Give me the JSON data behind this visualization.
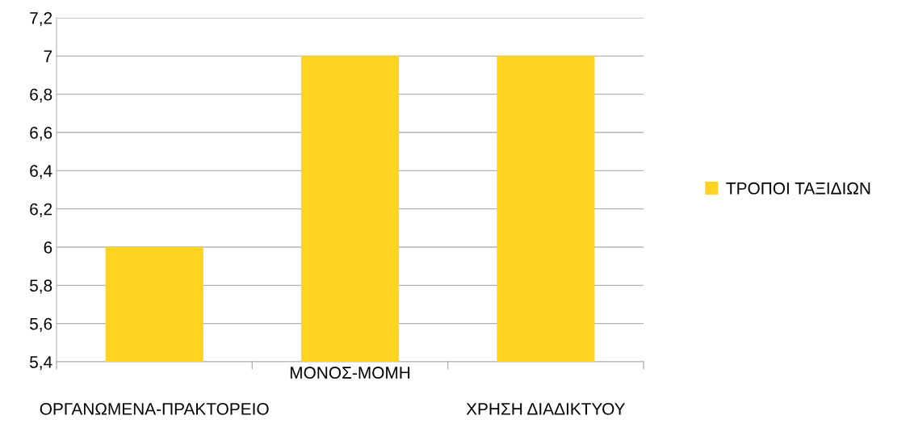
{
  "chart_data": {
    "type": "bar",
    "categories": [
      "ΟΡΓΑΝΩΜΕΝΑ-ΠΡΑΚΤΟΡΕΙΟ",
      "ΜΟΝΟΣ-ΜΟΜΗ",
      "ΧΡΗΣΗ ΔΙΑΔΙΚΤΥΟΥ"
    ],
    "series": [
      {
        "name": "ΤΡΟΠΟΙ ΤΑΞΙΔΙΩΝ",
        "color": "#ffd320",
        "values": [
          6,
          7,
          7
        ]
      }
    ],
    "ylim": [
      5.4,
      7.2
    ],
    "yticks": [
      {
        "value": 5.4,
        "label": "5,4"
      },
      {
        "value": 5.6,
        "label": "5,6"
      },
      {
        "value": 5.8,
        "label": "5,8"
      },
      {
        "value": 6,
        "label": "6"
      },
      {
        "value": 6.2,
        "label": "6,2"
      },
      {
        "value": 6.4,
        "label": "6,4"
      },
      {
        "value": 6.6,
        "label": "6,6"
      },
      {
        "value": 6.8,
        "label": "6,8"
      },
      {
        "value": 7,
        "label": "7"
      },
      {
        "value": 7.2,
        "label": "7,2"
      }
    ],
    "grid": "y",
    "legend": "right"
  }
}
